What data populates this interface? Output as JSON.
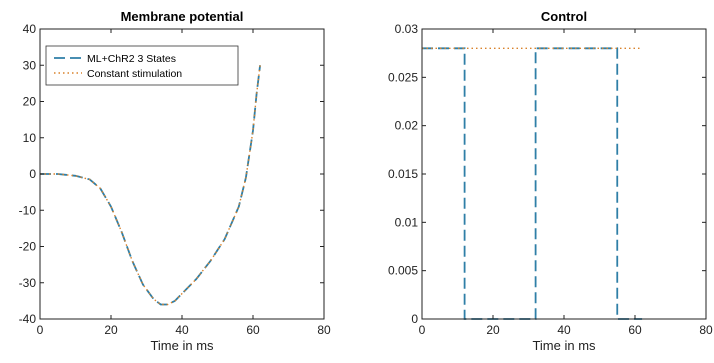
{
  "chart_data": [
    {
      "type": "line",
      "title": "Membrane potential",
      "xlabel": "Time in ms",
      "ylabel": "",
      "xlim": [
        0,
        80
      ],
      "ylim": [
        -40,
        40
      ],
      "xticks": [
        0,
        20,
        40,
        60,
        80
      ],
      "yticks": [
        -40,
        -30,
        -20,
        -10,
        0,
        10,
        20,
        30,
        40
      ],
      "grid": false,
      "legend": "top-left",
      "series": [
        {
          "name": "ML+ChR2 3 States",
          "color": "#2f7fa7",
          "style": "dashed",
          "x": [
            0,
            5,
            10,
            14,
            17,
            20,
            23,
            26,
            29,
            32,
            34,
            36,
            38,
            41,
            44,
            48,
            52,
            56,
            58,
            60,
            61,
            62
          ],
          "y": [
            0,
            0,
            -0.5,
            -1.5,
            -4,
            -9,
            -16,
            -24,
            -30.5,
            -34.5,
            -36,
            -36,
            -35,
            -32,
            -29,
            -24,
            -18,
            -9,
            -1,
            12,
            22,
            30
          ]
        },
        {
          "name": "Constant stimulation",
          "color": "#d9822b",
          "style": "dotted",
          "x": [
            0,
            5,
            10,
            14,
            17,
            20,
            23,
            26,
            29,
            32,
            34,
            36,
            38,
            41,
            44,
            48,
            52,
            56,
            58,
            60,
            61,
            62
          ],
          "y": [
            0,
            0,
            -0.5,
            -1.5,
            -4,
            -9,
            -16,
            -24,
            -30.5,
            -34.5,
            -36,
            -36,
            -35,
            -32,
            -29,
            -24,
            -18,
            -9,
            -1,
            12,
            22,
            30
          ]
        }
      ]
    },
    {
      "type": "line",
      "title": "Control",
      "xlabel": "Time in ms",
      "ylabel": "",
      "xlim": [
        0,
        80
      ],
      "ylim": [
        0,
        0.03
      ],
      "xticks": [
        0,
        20,
        40,
        60,
        80
      ],
      "yticks": [
        0,
        0.005,
        0.01,
        0.015,
        0.02,
        0.025,
        0.03
      ],
      "yticklabels": [
        "0",
        "0.005",
        "0.01",
        "0.015",
        "0.02",
        "0.025",
        "0.03"
      ],
      "grid": false,
      "series": [
        {
          "name": "ML+ChR2 3 States",
          "color": "#2f7fa7",
          "style": "dashed",
          "x": [
            0,
            12,
            12,
            32,
            32,
            55,
            55,
            62
          ],
          "y": [
            0.028,
            0.028,
            0,
            0,
            0.028,
            0.028,
            0,
            0
          ]
        },
        {
          "name": "Constant stimulation",
          "color": "#d9822b",
          "style": "dotted",
          "x": [
            0,
            62
          ],
          "y": [
            0.028,
            0.028
          ]
        }
      ]
    }
  ]
}
